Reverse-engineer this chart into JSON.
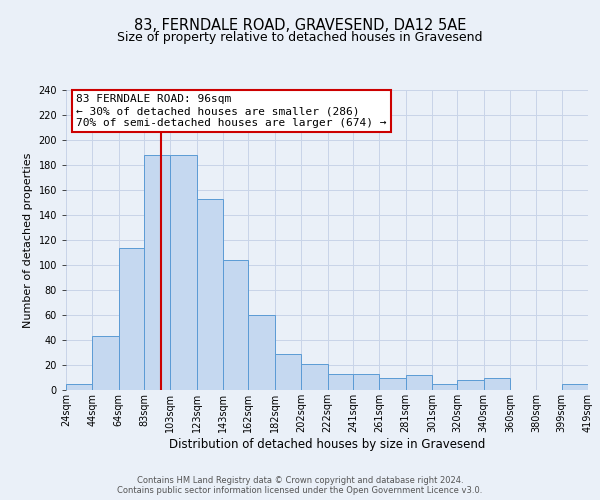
{
  "title": "83, FERNDALE ROAD, GRAVESEND, DA12 5AE",
  "subtitle": "Size of property relative to detached houses in Gravesend",
  "xlabel": "Distribution of detached houses by size in Gravesend",
  "ylabel": "Number of detached properties",
  "footer_line1": "Contains HM Land Registry data © Crown copyright and database right 2024.",
  "footer_line2": "Contains public sector information licensed under the Open Government Licence v3.0.",
  "bin_labels": [
    "24sqm",
    "44sqm",
    "64sqm",
    "83sqm",
    "103sqm",
    "123sqm",
    "143sqm",
    "162sqm",
    "182sqm",
    "202sqm",
    "222sqm",
    "241sqm",
    "261sqm",
    "281sqm",
    "301sqm",
    "320sqm",
    "340sqm",
    "360sqm",
    "380sqm",
    "399sqm",
    "419sqm"
  ],
  "bar_values": [
    5,
    43,
    114,
    188,
    188,
    153,
    104,
    60,
    29,
    21,
    13,
    13,
    10,
    12,
    5,
    8,
    10,
    0,
    0,
    5
  ],
  "bar_left_edges": [
    24,
    44,
    64,
    83,
    103,
    123,
    143,
    162,
    182,
    202,
    222,
    241,
    261,
    281,
    301,
    320,
    340,
    360,
    380,
    399
  ],
  "bar_widths": [
    20,
    20,
    19,
    20,
    20,
    20,
    19,
    20,
    20,
    20,
    19,
    20,
    20,
    20,
    19,
    20,
    20,
    20,
    19,
    20
  ],
  "bar_color": "#c5d8f0",
  "bar_edge_color": "#5b9bd5",
  "vline_x": 96,
  "vline_color": "#cc0000",
  "annotation_title": "83 FERNDALE ROAD: 96sqm",
  "annotation_line1": "← 30% of detached houses are smaller (286)",
  "annotation_line2": "70% of semi-detached houses are larger (674) →",
  "annotation_box_color": "#cc0000",
  "ylim": [
    0,
    240
  ],
  "yticks": [
    0,
    20,
    40,
    60,
    80,
    100,
    120,
    140,
    160,
    180,
    200,
    220,
    240
  ],
  "grid_color": "#c8d4e8",
  "background_color": "#eaf0f8",
  "title_fontsize": 10.5,
  "subtitle_fontsize": 9,
  "xlabel_fontsize": 8.5,
  "ylabel_fontsize": 8,
  "tick_fontsize": 7,
  "annotation_fontsize": 8,
  "footer_fontsize": 6
}
